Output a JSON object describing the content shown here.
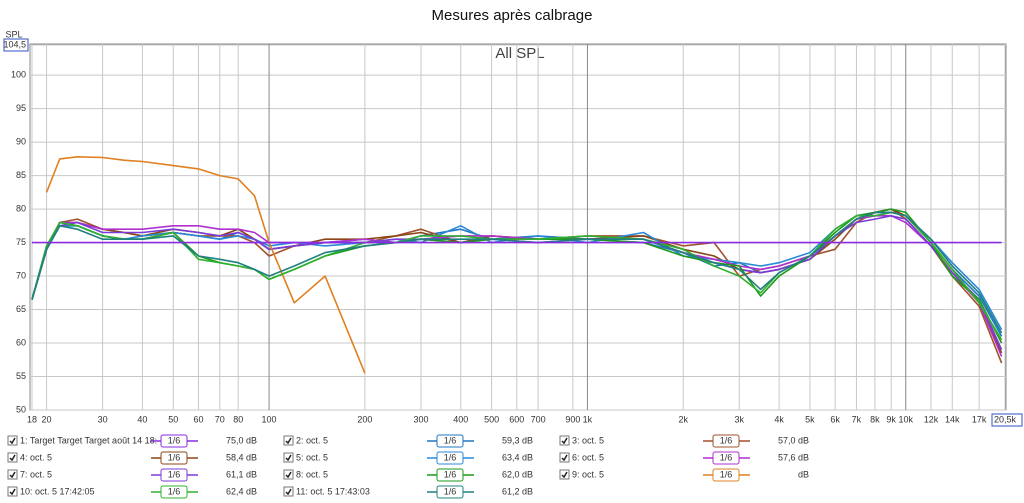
{
  "chart_data": {
    "type": "line",
    "title": "Mesures après calbrage",
    "annotation": "All SPL",
    "y_label": "SPL",
    "log_x": true,
    "grid": true,
    "xlim": [
      18,
      20500
    ],
    "ylim": [
      50,
      104.5
    ],
    "xticks": [
      18,
      20,
      30,
      40,
      50,
      60,
      70,
      80,
      100,
      200,
      300,
      400,
      500,
      600,
      700,
      900,
      {
        "value": 1000,
        "label": "1k"
      },
      {
        "value": 2000,
        "label": "2k"
      },
      {
        "value": 3000,
        "label": "3k"
      },
      {
        "value": 4000,
        "label": "4k"
      },
      {
        "value": 5000,
        "label": "5k"
      },
      {
        "value": 6000,
        "label": "6k"
      },
      {
        "value": 7000,
        "label": "7k"
      },
      {
        "value": 8000,
        "label": "8k"
      },
      {
        "value": 9000,
        "label": "9k"
      },
      {
        "value": 10000,
        "label": "10k"
      },
      {
        "value": 12000,
        "label": "12k"
      },
      {
        "value": 14000,
        "label": "14k"
      },
      {
        "value": 17000,
        "label": "17k"
      },
      {
        "value": 20500,
        "label": "20,5k"
      }
    ],
    "yticks": [
      50,
      55,
      60,
      65,
      70,
      75,
      80,
      85,
      90,
      95,
      100,
      {
        "value": 104.5,
        "label": "104,5"
      }
    ],
    "x": [
      18,
      20,
      22,
      25,
      30,
      35,
      40,
      50,
      60,
      70,
      80,
      90,
      100,
      120,
      150,
      200,
      250,
      300,
      400,
      500,
      700,
      1000,
      1500,
      2000,
      2500,
      3000,
      3500,
      4000,
      5000,
      6000,
      7000,
      8000,
      9000,
      10000,
      12000,
      14000,
      17000,
      20000
    ],
    "series": [
      {
        "name": "1: Target Target Target août 14 18:",
        "smoothing": "1/6",
        "level": "75,0 dB",
        "color": "#8a2be2",
        "values": [
          75,
          75,
          75,
          75,
          75,
          75,
          75,
          75,
          75,
          75,
          75,
          75,
          75,
          75,
          75,
          75,
          75,
          75,
          75,
          75,
          75,
          75,
          75,
          75,
          75,
          75,
          75,
          75,
          75,
          75,
          75,
          75,
          75,
          75,
          75,
          75,
          75,
          75
        ]
      },
      {
        "name": "2: oct. 5",
        "smoothing": "1/6",
        "level": "59,3 dB",
        "color": "#1f77c4",
        "values": [
          66.5,
          74.5,
          77.5,
          77.5,
          76,
          75.5,
          75.5,
          76.5,
          76,
          75.5,
          76.5,
          75.5,
          74,
          74.5,
          75,
          75.5,
          75,
          76,
          77,
          75.5,
          76,
          75.5,
          75,
          73.5,
          71.5,
          72,
          70.5,
          71,
          72.5,
          76,
          78.5,
          79,
          79.5,
          79,
          75,
          71,
          67,
          61
        ]
      },
      {
        "name": "3: oct. 5",
        "smoothing": "1/6",
        "level": "57,0 dB",
        "color": "#a0522d",
        "values": [
          66.5,
          74,
          78,
          78.5,
          77,
          76.5,
          76,
          76.5,
          76,
          76,
          76,
          75,
          73,
          74.5,
          75,
          75,
          76,
          77,
          75,
          76,
          75.5,
          76,
          76,
          74.5,
          75,
          70,
          71,
          71.5,
          73,
          74,
          78,
          79.5,
          80,
          78.5,
          74.5,
          70,
          65.5,
          57
        ]
      },
      {
        "name": "4: oct. 5",
        "smoothing": "1/6",
        "level": "58,4 dB",
        "color": "#8b4513",
        "values": [
          66.5,
          74,
          78,
          78,
          77,
          76.5,
          76,
          77,
          76.5,
          76,
          77,
          75.5,
          74,
          74.5,
          75.5,
          75.5,
          76,
          76.5,
          75,
          76,
          75.5,
          75.5,
          76,
          74,
          73,
          71,
          70.5,
          71,
          72.5,
          75.5,
          78.5,
          79.5,
          80,
          79,
          75,
          71,
          66,
          58.5
        ]
      },
      {
        "name": "5: oct. 5",
        "smoothing": "1/6",
        "level": "63,4 dB",
        "color": "#2a8ad8",
        "values": [
          66.5,
          74,
          77.5,
          77.5,
          76,
          75.5,
          76,
          76.5,
          76,
          75.5,
          76,
          75.5,
          74.5,
          75,
          74.5,
          75,
          75.5,
          75,
          77.5,
          75,
          76,
          75,
          76.5,
          73,
          72.5,
          72,
          71.5,
          72,
          73.5,
          77,
          79,
          79.5,
          79.5,
          79,
          75.5,
          72,
          68,
          62
        ]
      },
      {
        "name": "6: oct. 5",
        "smoothing": "1/6",
        "level": "57,6 dB",
        "color": "#b030d0",
        "values": [
          66.5,
          74,
          78,
          78,
          77,
          77,
          77,
          77.5,
          77.5,
          77,
          77,
          76.5,
          75,
          75,
          75,
          75.5,
          75,
          75.5,
          76,
          76,
          75.5,
          75.5,
          75.5,
          73.5,
          72.5,
          71.5,
          71,
          71.5,
          73,
          76,
          78.5,
          79,
          79,
          78,
          74.5,
          70.5,
          66,
          58
        ]
      },
      {
        "name": "7: oct. 5",
        "smoothing": "1/6",
        "level": "61,1 dB",
        "color": "#7a3cd8",
        "values": [
          66.5,
          74,
          77.5,
          78,
          76.5,
          76.5,
          76.5,
          77,
          76.5,
          76,
          76.5,
          75.5,
          74,
          74.5,
          75,
          75,
          75.5,
          75.5,
          75,
          75.5,
          75,
          75.5,
          75.5,
          73.5,
          72,
          71,
          70.5,
          71,
          72.5,
          76,
          78,
          78.5,
          79,
          78.5,
          74.5,
          70.5,
          66.5,
          59
        ]
      },
      {
        "name": "8: oct. 5",
        "smoothing": "1/6",
        "level": "62,0 dB",
        "color": "#1c9a1c",
        "values": [
          66.5,
          74,
          78,
          77.5,
          76,
          75.5,
          75.5,
          76.5,
          73,
          72,
          71.5,
          71,
          69.5,
          71,
          73,
          74.5,
          75,
          75.5,
          75,
          75.5,
          75.5,
          75.5,
          75,
          73,
          72,
          71.5,
          67,
          70,
          73,
          76.5,
          79,
          79.5,
          80,
          79.5,
          75,
          70,
          66.5,
          60
        ]
      },
      {
        "name": "9: oct. 5",
        "smoothing": "1/6",
        "level": "dB",
        "color": "#e08020",
        "values": [
          null,
          82.5,
          87.5,
          87.8,
          87.7,
          87.3,
          87.1,
          86.5,
          86,
          85,
          84.5,
          82,
          75,
          66,
          70,
          55.5,
          null,
          null,
          null,
          null,
          null,
          null,
          null,
          null,
          null,
          null,
          null,
          null,
          null,
          null,
          null,
          null,
          null,
          null,
          null,
          null,
          null,
          null
        ]
      },
      {
        "name": "10: oct. 5 17:42:05",
        "smoothing": "1/6",
        "level": "62,4 dB",
        "color": "#30b030",
        "values": [
          66.5,
          74.5,
          78,
          77.5,
          76,
          75.5,
          75.5,
          76.5,
          72.5,
          72,
          71.5,
          71,
          69.5,
          71,
          73,
          75,
          75,
          76,
          76,
          75.5,
          75.5,
          76,
          75.5,
          74,
          71.5,
          70,
          67.5,
          70.5,
          73,
          77,
          79,
          79,
          79.5,
          79,
          75,
          71,
          66,
          60.5
        ]
      },
      {
        "name": "11: oct. 5 17:43:03",
        "smoothing": "1/6",
        "level": "61,2 dB",
        "color": "#208080",
        "values": [
          66.5,
          74,
          77.5,
          77,
          75.5,
          75.5,
          75.5,
          76,
          73,
          72.5,
          72,
          71,
          70,
          71.5,
          73.5,
          74.5,
          75,
          75.5,
          75.5,
          75.5,
          75,
          75.5,
          75.5,
          73.5,
          72,
          71,
          68,
          70.5,
          73,
          76,
          78.5,
          79.5,
          79.5,
          79,
          75.5,
          71.5,
          67.5,
          61.5
        ]
      }
    ]
  }
}
